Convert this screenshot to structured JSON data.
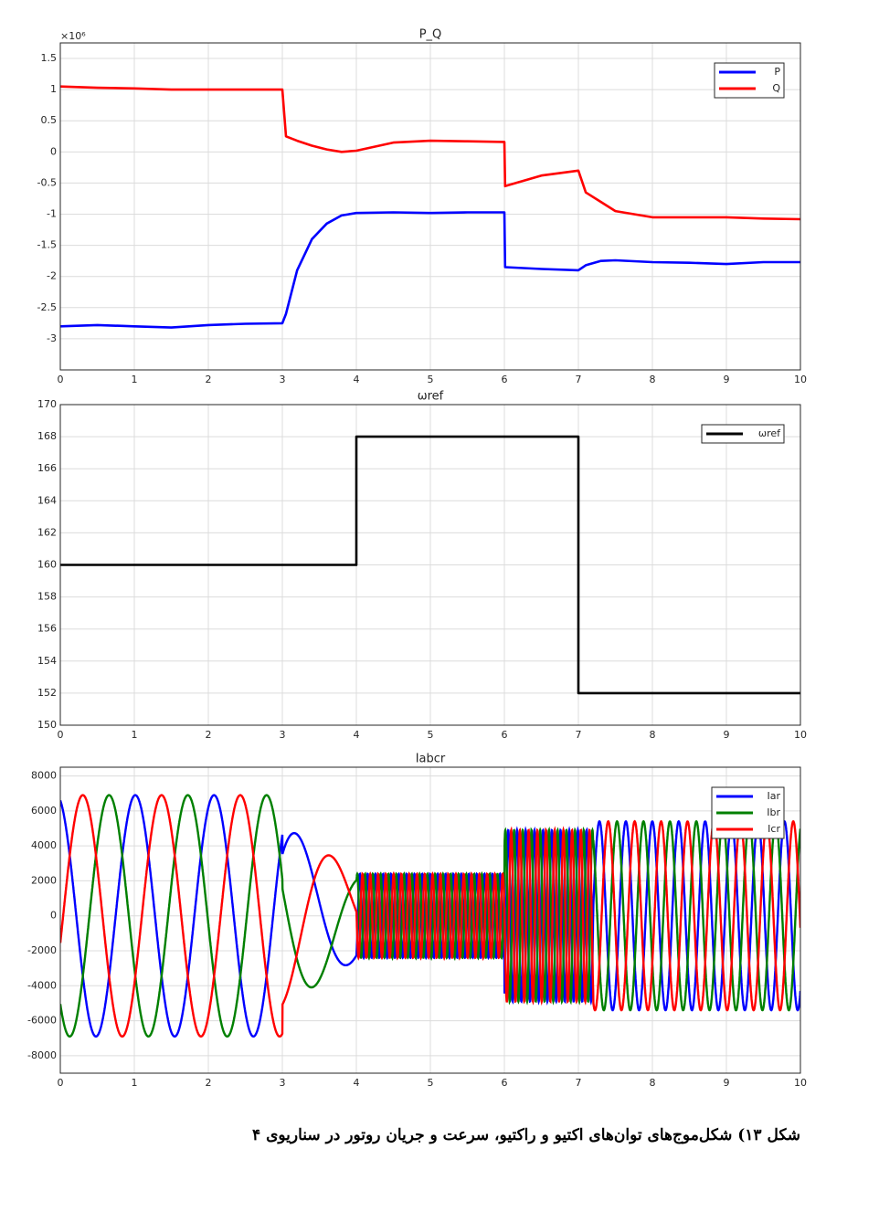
{
  "chart_data": [
    {
      "type": "line",
      "title": "P_Q",
      "y_multiplier_label": "×10⁶",
      "x": [
        0,
        0.5,
        1,
        1.5,
        2,
        2.5,
        3,
        3.05,
        3.2,
        3.4,
        3.6,
        3.8,
        4,
        4.5,
        5,
        5.5,
        6,
        6.01,
        6.5,
        7,
        7.1,
        7.3,
        7.5,
        8,
        8.5,
        9,
        9.5,
        10
      ],
      "series": [
        {
          "name": "P",
          "color": "#0000ff",
          "values": [
            -2.8,
            -2.78,
            -2.8,
            -2.82,
            -2.78,
            -2.76,
            -2.75,
            -2.6,
            -1.9,
            -1.4,
            -1.15,
            -1.02,
            -0.98,
            -0.97,
            -0.98,
            -0.97,
            -0.97,
            -1.85,
            -1.88,
            -1.9,
            -1.82,
            -1.75,
            -1.74,
            -1.77,
            -1.78,
            -1.8,
            -1.77,
            -1.77
          ]
        },
        {
          "name": "Q",
          "color": "#ff0000",
          "values": [
            1.05,
            1.03,
            1.02,
            1.0,
            1.0,
            1.0,
            1.0,
            0.25,
            0.18,
            0.1,
            0.04,
            0.0,
            0.02,
            0.15,
            0.18,
            0.17,
            0.16,
            -0.55,
            -0.38,
            -0.3,
            -0.65,
            -0.8,
            -0.95,
            -1.05,
            -1.05,
            -1.05,
            -1.07,
            -1.08
          ]
        }
      ],
      "xlim": [
        0,
        10
      ],
      "xticks": [
        0,
        1,
        2,
        3,
        4,
        5,
        6,
        7,
        8,
        9,
        10
      ],
      "ylim": [
        -3.5,
        1.75
      ],
      "yticks": [
        -3,
        -2.5,
        -2,
        -1.5,
        -1,
        -0.5,
        0,
        0.5,
        1,
        1.5
      ],
      "grid": true,
      "legend": "northeast"
    },
    {
      "type": "line",
      "title": "ωref",
      "x": [
        0,
        4,
        4,
        7,
        7,
        10
      ],
      "series": [
        {
          "name": "ωref",
          "color": "#000000",
          "values": [
            160,
            160,
            168,
            168,
            152,
            152
          ]
        }
      ],
      "xlim": [
        0,
        10
      ],
      "xticks": [
        0,
        1,
        2,
        3,
        4,
        5,
        6,
        7,
        8,
        9,
        10
      ],
      "ylim": [
        150,
        170
      ],
      "yticks": [
        150,
        152,
        154,
        156,
        158,
        160,
        162,
        164,
        166,
        168,
        170
      ],
      "grid": true,
      "legend": "northeast"
    },
    {
      "type": "waveform",
      "title": "Iabcr",
      "initial_phase_deg": 17,
      "segments": [
        {
          "start": 0,
          "end": 3,
          "amplitude_start": 6900,
          "amplitude_end": 6900,
          "frequency": 0.94
        },
        {
          "start": 3,
          "end": 4,
          "amplitude_start": 5200,
          "amplitude_end": 2500,
          "frequency": 0.7
        },
        {
          "start": 4,
          "end": 6,
          "amplitude_start": 2400,
          "amplitude_end": 2400,
          "frequency": 9.5
        },
        {
          "start": 6,
          "end": 7.2,
          "amplitude_start": 4900,
          "amplitude_end": 4900,
          "frequency": 8.5
        },
        {
          "start": 7.2,
          "end": 10,
          "amplitude_start": 5400,
          "amplitude_end": 5400,
          "frequency": 2.8
        }
      ],
      "series": [
        {
          "name": "Iar",
          "color": "#0000ff",
          "phase_offset_deg": 0
        },
        {
          "name": "Ibr",
          "color": "#008000",
          "phase_offset_deg": 120
        },
        {
          "name": "Icr",
          "color": "#ff0000",
          "phase_offset_deg": -120
        }
      ],
      "xlim": [
        0,
        10
      ],
      "xticks": [
        0,
        1,
        2,
        3,
        4,
        5,
        6,
        7,
        8,
        9,
        10
      ],
      "ylim": [
        -9000,
        8500
      ],
      "yticks": [
        -8000,
        -6000,
        -4000,
        -2000,
        0,
        2000,
        4000,
        6000,
        8000
      ],
      "grid": true,
      "legend": "northeast"
    }
  ],
  "caption": "شکل ۱۳) شکل‌موج‌های توان‌های اکتیو و راکتیو، سرعت و جریان روتور در سناریوی ۴"
}
